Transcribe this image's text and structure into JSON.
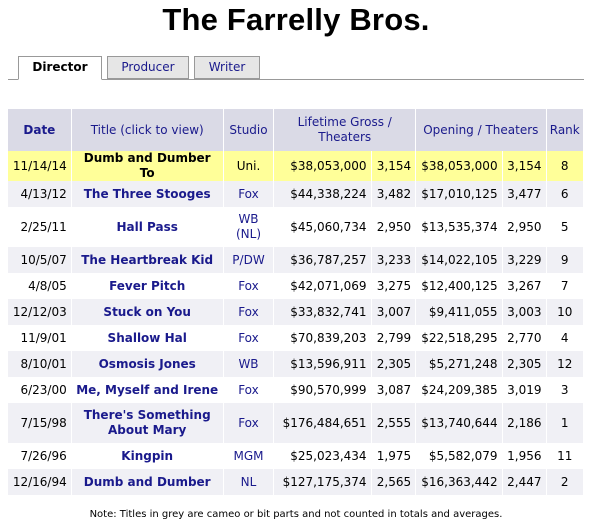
{
  "page": {
    "title": "The Farrelly Bros."
  },
  "tabs": [
    {
      "label": "Director",
      "active": true
    },
    {
      "label": "Producer",
      "active": false
    },
    {
      "label": "Writer",
      "active": false
    }
  ],
  "table": {
    "headers": {
      "date": "Date",
      "title": "Title (click to view)",
      "studio": "Studio",
      "lifetime": "Lifetime Gross / Theaters",
      "opening": "Opening / Theaters",
      "rank": "Rank"
    },
    "rows": [
      {
        "date": "11/14/14",
        "title": "Dumb and Dumber To",
        "studio": "Uni.",
        "gross": "$38,053,000",
        "theaters": "3,154",
        "opening": "$38,053,000",
        "open_theaters": "3,154",
        "rank": "8"
      },
      {
        "date": "4/13/12",
        "title": "The Three Stooges",
        "studio": "Fox",
        "gross": "$44,338,224",
        "theaters": "3,482",
        "opening": "$17,010,125",
        "open_theaters": "3,477",
        "rank": "6"
      },
      {
        "date": "2/25/11",
        "title": "Hall Pass",
        "studio": "WB (NL)",
        "gross": "$45,060,734",
        "theaters": "2,950",
        "opening": "$13,535,374",
        "open_theaters": "2,950",
        "rank": "5"
      },
      {
        "date": "10/5/07",
        "title": "The Heartbreak Kid",
        "studio": "P/DW",
        "gross": "$36,787,257",
        "theaters": "3,233",
        "opening": "$14,022,105",
        "open_theaters": "3,229",
        "rank": "9"
      },
      {
        "date": "4/8/05",
        "title": "Fever Pitch",
        "studio": "Fox",
        "gross": "$42,071,069",
        "theaters": "3,275",
        "opening": "$12,400,125",
        "open_theaters": "3,267",
        "rank": "7"
      },
      {
        "date": "12/12/03",
        "title": "Stuck on You",
        "studio": "Fox",
        "gross": "$33,832,741",
        "theaters": "3,007",
        "opening": "$9,411,055",
        "open_theaters": "3,003",
        "rank": "10"
      },
      {
        "date": "11/9/01",
        "title": "Shallow Hal",
        "studio": "Fox",
        "gross": "$70,839,203",
        "theaters": "2,799",
        "opening": "$22,518,295",
        "open_theaters": "2,770",
        "rank": "4"
      },
      {
        "date": "8/10/01",
        "title": "Osmosis Jones",
        "studio": "WB",
        "gross": "$13,596,911",
        "theaters": "2,305",
        "opening": "$5,271,248",
        "open_theaters": "2,305",
        "rank": "12"
      },
      {
        "date": "6/23/00",
        "title": "Me, Myself and Irene",
        "studio": "Fox",
        "gross": "$90,570,999",
        "theaters": "3,087",
        "opening": "$24,209,385",
        "open_theaters": "3,019",
        "rank": "3"
      },
      {
        "date": "7/15/98",
        "title": "There's Something About Mary",
        "studio": "Fox",
        "gross": "$176,484,651",
        "theaters": "2,555",
        "opening": "$13,740,644",
        "open_theaters": "2,186",
        "rank": "1"
      },
      {
        "date": "7/26/96",
        "title": "Kingpin",
        "studio": "MGM",
        "gross": "$25,023,434",
        "theaters": "1,975",
        "opening": "$5,582,079",
        "open_theaters": "1,956",
        "rank": "11"
      },
      {
        "date": "12/16/94",
        "title": "Dumb and Dumber",
        "studio": "NL",
        "gross": "$127,175,374",
        "theaters": "2,565",
        "opening": "$16,363,442",
        "open_theaters": "2,447",
        "rank": "2"
      }
    ]
  },
  "footnote": "Note: Titles in grey are cameo or bit parts and not counted in totals and averages.",
  "colors": {
    "header_bg": "#dadae6",
    "link": "#1a1a8c",
    "highlight": "#ffff99",
    "stripe": "#f0f0f5"
  }
}
